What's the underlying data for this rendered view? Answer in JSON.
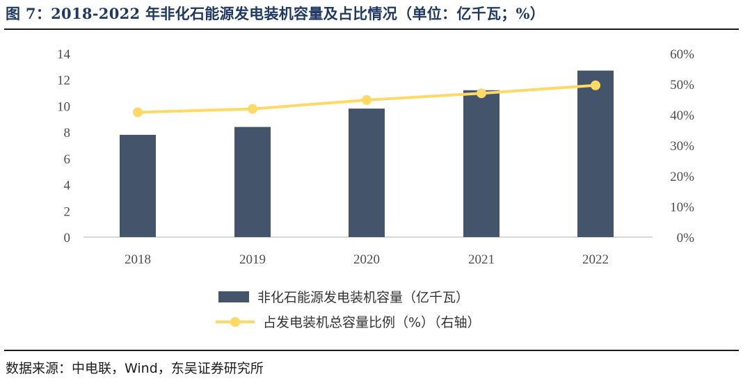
{
  "header": {
    "title": "图 7：2018-2022 年非化石能源发电装机容量及占比情况（单位：亿千瓦；%）"
  },
  "footer": {
    "source": "数据来源：中电联，Wind，东吴证券研究所"
  },
  "chart_data": {
    "type": "bar",
    "categories": [
      "2018",
      "2019",
      "2020",
      "2021",
      "2022"
    ],
    "series": [
      {
        "name": "非化石能源发电装机容量（亿千瓦）",
        "type": "bar",
        "axis": "left",
        "values": [
          7.8,
          8.4,
          9.8,
          11.2,
          12.7
        ]
      },
      {
        "name": "占发电装机总容量比例（%）（右轴）",
        "type": "line",
        "axis": "right",
        "values": [
          40.8,
          41.9,
          44.8,
          47.0,
          49.6
        ]
      }
    ],
    "y_left": {
      "ticks": [
        "0",
        "2",
        "4",
        "6",
        "8",
        "10",
        "12",
        "14"
      ],
      "lim": [
        0,
        14
      ]
    },
    "y_right": {
      "ticks": [
        "0%",
        "10%",
        "20%",
        "30%",
        "40%",
        "50%",
        "60%"
      ],
      "lim": [
        0,
        60
      ]
    },
    "legend_position": "bottom-center",
    "grid": false,
    "colors": {
      "bar": "#44546a",
      "line": "#ffd966",
      "title": "#1f3864"
    }
  }
}
